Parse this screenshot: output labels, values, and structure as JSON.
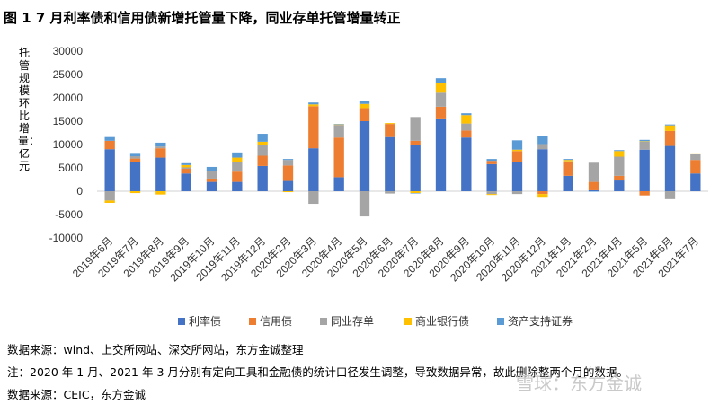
{
  "title": "图 1  7 月利率债和信用债新增托管量下降，同业存单托管增量转正",
  "notes": {
    "source1": "数据来源：wind、上交所网站、深交所网站，东方金诚整理",
    "remark": "注：2020 年 1 月、2021 年 3 月分别有定向工具和金融债的统计口径发生调整，导致数据异常，故此删除整两个月的数据。",
    "source2": "数据来源：CEIC，东方金诚"
  },
  "watermark": "雪球：东方金诚",
  "chart_data": {
    "type": "bar",
    "stacked": true,
    "ylabel": "托管规模环比增量：亿元",
    "xlabel": "",
    "ylim": [
      -10000,
      30000
    ],
    "yticks": [
      -10000,
      -5000,
      0,
      5000,
      10000,
      15000,
      20000,
      25000,
      30000
    ],
    "ytick_labels": [
      "-10000",
      "-5000",
      "0",
      "5000",
      "10000",
      "15000",
      "20000",
      "25000",
      "30000"
    ],
    "grid": false,
    "legend_position": "bottom",
    "categories": [
      "2019年6月",
      "2019年7月",
      "2019年8月",
      "2019年9月",
      "2019年10月",
      "2019年11月",
      "2019年12月",
      "2020年2月",
      "2020年3月",
      "2020年4月",
      "2020年5月",
      "2020年6月",
      "2020年7月",
      "2020年8月",
      "2020年9月",
      "2020年10月",
      "2020年11月",
      "2020年12月",
      "2021年1月",
      "2021年2月",
      "2021年4月",
      "2021年5月",
      "2021年6月",
      "2021年7月"
    ],
    "series": [
      {
        "name": "利率债",
        "color": "#4472C4",
        "values": [
          9000,
          6200,
          7200,
          3800,
          2000,
          2000,
          5400,
          2200,
          9200,
          3000,
          15000,
          11600,
          9900,
          15600,
          11500,
          5800,
          6300,
          9000,
          3300,
          200,
          2300,
          8900,
          9700,
          3800
        ]
      },
      {
        "name": "信用债",
        "color": "#ED7D31",
        "values": [
          1800,
          800,
          2000,
          1000,
          700,
          2200,
          2200,
          3300,
          9000,
          8500,
          2800,
          2800,
          900,
          2500,
          1500,
          700,
          2300,
          -600,
          2900,
          1800,
          1000,
          -900,
          3200,
          2900
        ]
      },
      {
        "name": "同业存单",
        "color": "#A5A5A5",
        "values": [
          -2000,
          500,
          400,
          300,
          1600,
          2000,
          2300,
          1200,
          -2700,
          2700,
          -5400,
          -500,
          5100,
          3000,
          1500,
          -600,
          -600,
          1100,
          200,
          4100,
          4100,
          1700,
          -1700,
          1300
        ]
      },
      {
        "name": "商业银行债",
        "color": "#FFC000",
        "values": [
          -500,
          -400,
          -700,
          500,
          100,
          1000,
          700,
          -200,
          400,
          100,
          900,
          200,
          -400,
          2000,
          1800,
          -200,
          300,
          -600,
          300,
          0,
          1200,
          100,
          1200,
          100
        ]
      },
      {
        "name": "资产支持证券",
        "color": "#5B9BD5",
        "values": [
          800,
          700,
          800,
          400,
          800,
          1100,
          1700,
          200,
          400,
          100,
          600,
          0,
          -100,
          1100,
          400,
          400,
          2000,
          1800,
          200,
          -100,
          200,
          300,
          200,
          0
        ]
      }
    ]
  }
}
